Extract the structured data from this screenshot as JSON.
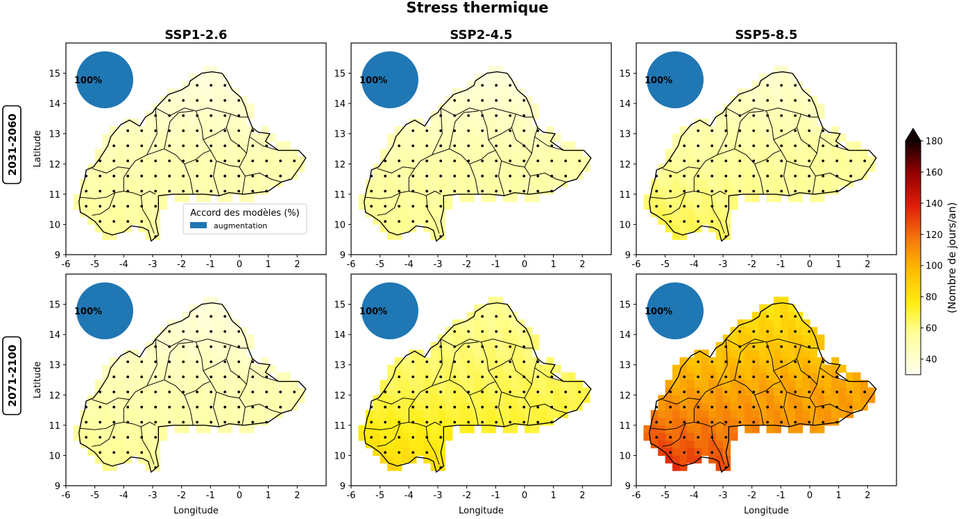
{
  "chart_data": {
    "type": "heatmap",
    "title": "Stress thermique",
    "columns": [
      "SSP1-2.6",
      "SSP2-4.5",
      "SSP5-8.5"
    ],
    "rows": [
      "2031-2060",
      "2071-2100"
    ],
    "xlabel": "Longitude",
    "ylabel": "Latitude",
    "xlim": [
      -6,
      3
    ],
    "ylim": [
      9,
      16
    ],
    "xticks": [
      -6,
      -5,
      -4,
      -3,
      -2,
      -1,
      0,
      1,
      2
    ],
    "yticks": [
      9,
      10,
      11,
      12,
      13,
      14,
      15
    ],
    "colorbar": {
      "label": "(Nombre de jours/an)",
      "range": [
        30,
        180
      ],
      "ticks": [
        40,
        60,
        80,
        100,
        120,
        140,
        160,
        180
      ],
      "extend": "max",
      "colormap": "hot_r"
    },
    "legend": {
      "title": "Accord des modèles (%)",
      "entry": "augmentation",
      "color": "#1f77b4"
    },
    "panels": [
      {
        "scenario": "SSP1-2.6",
        "period": "2031-2060",
        "agreement": "100%",
        "north": 36,
        "center": 48,
        "southwest": 58,
        "southeast": 50
      },
      {
        "scenario": "SSP2-4.5",
        "period": "2031-2060",
        "agreement": "100%",
        "north": 36,
        "center": 50,
        "southwest": 60,
        "southeast": 54
      },
      {
        "scenario": "SSP5-8.5",
        "period": "2031-2060",
        "agreement": "100%",
        "north": 40,
        "center": 54,
        "southwest": 72,
        "southeast": 58
      },
      {
        "scenario": "SSP1-2.6",
        "period": "2071-2100",
        "agreement": "100%",
        "north": 36,
        "center": 48,
        "southwest": 60,
        "southeast": 52
      },
      {
        "scenario": "SSP2-4.5",
        "period": "2071-2100",
        "agreement": "100%",
        "north": 56,
        "center": 66,
        "southwest": 88,
        "southeast": 76
      },
      {
        "scenario": "SSP5-8.5",
        "period": "2071-2100",
        "agreement": "100%",
        "north": 80,
        "center": 104,
        "southwest": 140,
        "southeast": 112
      }
    ]
  }
}
